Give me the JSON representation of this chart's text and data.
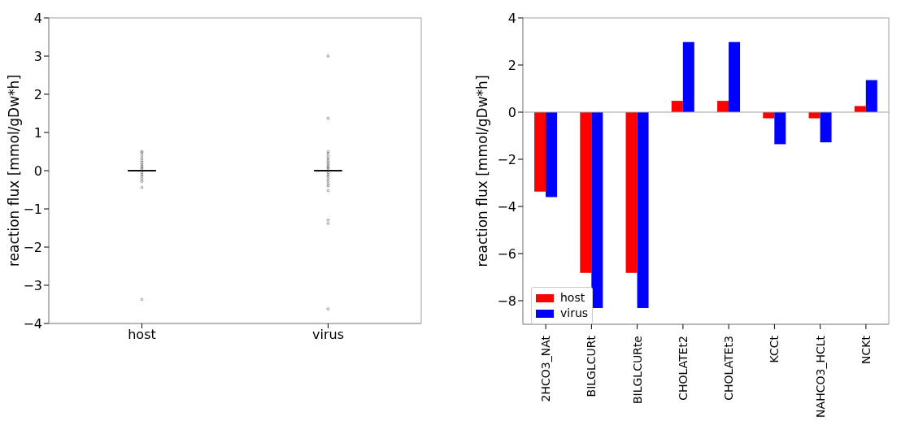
{
  "chart_data": [
    {
      "type": "box",
      "categories": [
        "host",
        "virus"
      ],
      "ylabel": "reaction flux [mmol/gDw*h]",
      "ylim": [
        -4,
        4
      ],
      "yticks": [
        -4,
        -3,
        -2,
        -1,
        0,
        1,
        2,
        3,
        4
      ],
      "grid": false,
      "legend": false,
      "boxes": [
        {
          "low": 0,
          "q1": 0,
          "median": 0,
          "q3": 0,
          "high": 0,
          "outliers": [
            0.5,
            0.47,
            0.4,
            0.33,
            0.27,
            0.22,
            0.17,
            0.12,
            0.08,
            0.05,
            -0.05,
            -0.1,
            -0.15,
            -0.22,
            -0.28,
            -0.44,
            -3.37
          ]
        },
        {
          "low": 0,
          "q1": 0,
          "median": 0,
          "q3": 0,
          "high": 0,
          "outliers": [
            3.0,
            1.37,
            0.5,
            0.45,
            0.38,
            0.32,
            0.27,
            0.22,
            0.17,
            0.12,
            0.08,
            0.05,
            -0.05,
            -0.1,
            -0.15,
            -0.22,
            -0.28,
            -0.35,
            -0.4,
            -0.52,
            -1.29,
            -1.38,
            -3.62
          ]
        }
      ]
    },
    {
      "type": "bar",
      "categories": [
        "2HCO3_NAt",
        "BILGLCURt",
        "BILGLCURte",
        "CHOLATEt2",
        "CHOLATEt3",
        "KCCt",
        "NAHCO3_HCLt",
        "NCKt"
      ],
      "ylabel": "reaction flux [mmol/gDw*h]",
      "ylim": [
        -9,
        4
      ],
      "yticks": [
        -8,
        -6,
        -4,
        -2,
        0,
        2,
        4
      ],
      "grid": false,
      "legend": "bottom left",
      "ref_lines": [
        {
          "axis": "y",
          "value": 0,
          "color": "#a0a0a0"
        }
      ],
      "series": [
        {
          "name": "host",
          "color": "#ff0000",
          "values": [
            -3.37,
            -6.82,
            -6.82,
            0.48,
            0.48,
            -0.26,
            -0.26,
            0.26
          ]
        },
        {
          "name": "virus",
          "color": "#0000ff",
          "values": [
            -3.6,
            -8.31,
            -8.31,
            2.97,
            2.97,
            -1.36,
            -1.28,
            1.36
          ]
        }
      ]
    }
  ]
}
